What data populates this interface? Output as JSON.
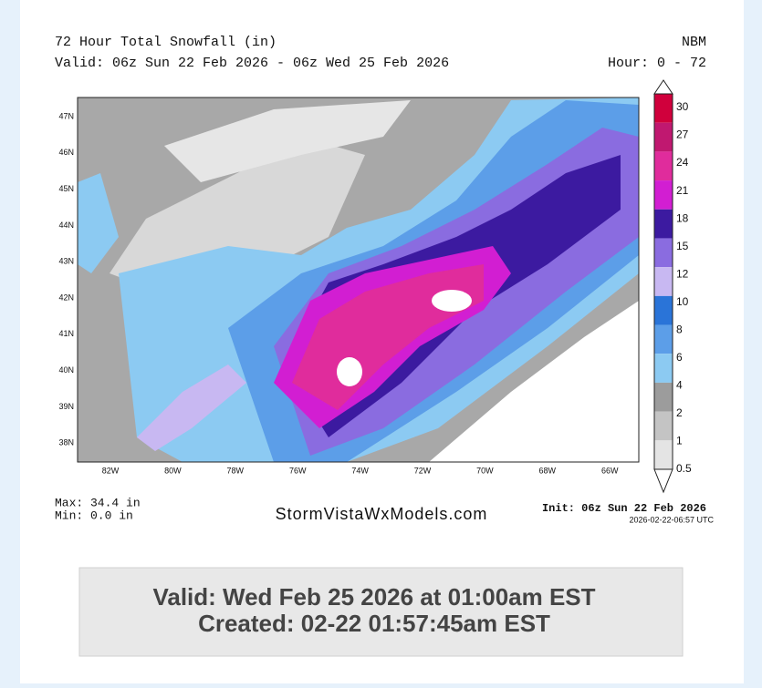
{
  "header": {
    "title": "72 Hour Total Snowfall (in)",
    "valid": "Valid: 06z Sun 22 Feb 2026 - 06z Wed 25 Feb 2026",
    "model": "NBM",
    "hours": "Hour: 0 - 72"
  },
  "map": {
    "lat_labels": [
      "47N",
      "46N",
      "45N",
      "44N",
      "43N",
      "42N",
      "41N",
      "40N",
      "39N",
      "38N"
    ],
    "lon_labels": [
      "82W",
      "80W",
      "78W",
      "76W",
      "74W",
      "72W",
      "70W",
      "68W",
      "66W"
    ]
  },
  "colorbar": {
    "levels": [
      30,
      27,
      24,
      21,
      18,
      15,
      12,
      10,
      8,
      6,
      4,
      2,
      1,
      0.5
    ],
    "colors": [
      "#d0003c",
      "#c01870",
      "#e02c9c",
      "#d21ed2",
      "#3c1aa0",
      "#8a6ce0",
      "#c8b8f2",
      "#2a74d8",
      "#5c9ee8",
      "#8ccaf2",
      "#9c9c9c",
      "#c4c4c4",
      "#e4e4e4"
    ]
  },
  "footer": {
    "max": "Max: 34.4 in",
    "min": "Min: 0.0 in",
    "brand": "StormVistaWxModels.com",
    "init": "Init: 06z Sun 22 Feb 2026",
    "stamp": "2026-02-22-06:57 UTC"
  },
  "valid_box": {
    "line1": "Valid: Wed Feb 25 2026 at 01:00am EST",
    "line2": "Created: 02-22 01:57:45am EST"
  }
}
